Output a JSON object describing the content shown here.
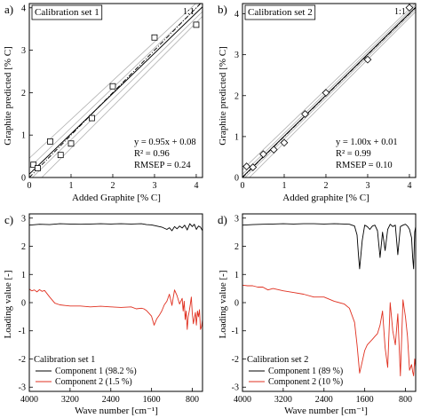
{
  "chart_data": [
    {
      "panel_label": "a)",
      "type": "scatter",
      "annotation": "Calibration set 1",
      "corner_label": "1:1",
      "xlabel": "Added Graphite [% C]",
      "ylabel": "Graphite predicted [% C]",
      "xlim": [
        0,
        4.15
      ],
      "ylim": [
        0,
        4.1
      ],
      "xticks": [
        0,
        1,
        2,
        3,
        4
      ],
      "yticks": [
        0,
        1,
        2,
        3,
        4
      ],
      "points": [
        [
          0.1,
          0.3
        ],
        [
          0.2,
          0.22
        ],
        [
          0.5,
          0.85
        ],
        [
          0.75,
          0.53
        ],
        [
          1.0,
          0.8
        ],
        [
          1.5,
          1.4
        ],
        [
          2.0,
          2.15
        ],
        [
          3.0,
          3.3
        ],
        [
          4.0,
          3.6
        ]
      ],
      "fit": {
        "slope": 0.95,
        "intercept": 0.08
      },
      "band_halfwidth": 0.25,
      "stats": [
        "y = 0.95x + 0.08",
        "R² = 0.96",
        "RMSEP = 0.24"
      ]
    },
    {
      "panel_label": "b)",
      "type": "scatter",
      "annotation": "Calibration set 2",
      "corner_label": "1:1",
      "xlabel": "Added graphite [% C]",
      "ylabel": "Graphite predicted [% C]",
      "xlim": [
        0,
        4.15
      ],
      "ylim": [
        0,
        4.25
      ],
      "xticks": [
        0,
        1,
        2,
        3,
        4
      ],
      "yticks": [
        0,
        1,
        2,
        3,
        4
      ],
      "points": [
        [
          0.1,
          0.27
        ],
        [
          0.25,
          0.25
        ],
        [
          0.5,
          0.57
        ],
        [
          0.75,
          0.68
        ],
        [
          1.0,
          0.85
        ],
        [
          1.5,
          1.55
        ],
        [
          2.0,
          2.07
        ],
        [
          3.0,
          2.88
        ],
        [
          4.0,
          4.15
        ]
      ],
      "fit": {
        "slope": 1.0,
        "intercept": 0.01
      },
      "band_halfwidth": 0.12,
      "stats": [
        "y = 1.00x + 0.01",
        "R² = 0.99",
        "RMSEP = 0.10"
      ]
    },
    {
      "panel_label": "c)",
      "type": "line",
      "annotation": "Calibration set 1",
      "xlabel": "Wave number [cm⁻¹]",
      "ylabel": "Loading value [-]",
      "xlim": [
        4000,
        600
      ],
      "ylim": [
        -3.15,
        3.15
      ],
      "xticks": [
        4000,
        3200,
        2400,
        1600,
        800
      ],
      "yticks": [
        3,
        2,
        1,
        0,
        -1,
        -2,
        -3
      ],
      "series": [
        {
          "name": "Component 1 (98.2 %)",
          "color": "#000000",
          "x": [
            4000,
            3800,
            3600,
            3400,
            3200,
            3000,
            2800,
            2600,
            2400,
            2200,
            2000,
            1800,
            1700,
            1600,
            1500,
            1400,
            1300,
            1250,
            1200,
            1150,
            1100,
            1050,
            1000,
            950,
            900,
            850,
            800,
            760,
            720,
            680,
            640,
            600
          ],
          "y": [
            2.75,
            2.78,
            2.77,
            2.8,
            2.79,
            2.78,
            2.79,
            2.8,
            2.79,
            2.8,
            2.79,
            2.8,
            2.77,
            2.76,
            2.72,
            2.68,
            2.6,
            2.66,
            2.55,
            2.7,
            2.62,
            2.72,
            2.65,
            2.75,
            2.58,
            2.8,
            2.7,
            2.78,
            2.6,
            2.72,
            2.68,
            2.55
          ]
        },
        {
          "name": "Component 2 (1.5 %)",
          "color": "#e03020",
          "x": [
            4000,
            3950,
            3900,
            3850,
            3800,
            3750,
            3700,
            3600,
            3500,
            3400,
            3300,
            3200,
            3000,
            2800,
            2600,
            2400,
            2200,
            2000,
            1900,
            1800,
            1750,
            1700,
            1650,
            1600,
            1550,
            1500,
            1450,
            1400,
            1350,
            1300,
            1250,
            1200,
            1150,
            1100,
            1050,
            1000,
            980,
            960,
            940,
            920,
            900,
            880,
            860,
            840,
            820,
            800,
            780,
            760,
            740,
            720,
            700,
            680,
            660,
            640,
            620,
            600
          ],
          "y": [
            0.48,
            0.42,
            0.45,
            0.38,
            0.46,
            0.4,
            0.43,
            0.2,
            -0.02,
            -0.08,
            -0.1,
            -0.12,
            -0.12,
            -0.15,
            -0.13,
            -0.15,
            -0.17,
            -0.15,
            -0.22,
            -0.2,
            -0.22,
            -0.28,
            -0.38,
            -0.48,
            -0.8,
            -0.58,
            -0.45,
            -0.3,
            -0.08,
            0.05,
            0.3,
            -0.1,
            0.45,
            0.25,
            -0.05,
            0.15,
            -0.3,
            0.05,
            -0.6,
            -0.3,
            -0.95,
            -0.5,
            -0.3,
            -0.08,
            0.2,
            -0.38,
            -0.75,
            -0.55,
            -0.35,
            -0.8,
            -0.3,
            -0.5,
            -0.25,
            -0.95,
            -0.85,
            -0.6
          ]
        }
      ]
    },
    {
      "panel_label": "d)",
      "type": "line",
      "annotation": "Calibration set 2",
      "xlabel": "Wave number [cm⁻¹]",
      "ylabel": "Loading value [-]",
      "xlim": [
        4000,
        600
      ],
      "ylim": [
        -3.15,
        3.15
      ],
      "xticks": [
        4000,
        3200,
        2400,
        1600,
        800
      ],
      "yticks": [
        3,
        2,
        1,
        0,
        -1,
        -2,
        -3
      ],
      "series": [
        {
          "name": "Component 1 (89 %)",
          "color": "#000000",
          "x": [
            4000,
            3800,
            3600,
            3400,
            3200,
            3000,
            2800,
            2600,
            2400,
            2200,
            2000,
            1900,
            1800,
            1750,
            1720,
            1700,
            1650,
            1600,
            1550,
            1500,
            1450,
            1400,
            1350,
            1300,
            1250,
            1200,
            1150,
            1100,
            1050,
            1000,
            950,
            900,
            850,
            800,
            760,
            720,
            680,
            660,
            640,
            620,
            600
          ],
          "y": [
            2.75,
            2.77,
            2.78,
            2.79,
            2.8,
            2.79,
            2.8,
            2.8,
            2.79,
            2.8,
            2.79,
            2.78,
            2.72,
            2.4,
            1.6,
            1.2,
            2.2,
            2.75,
            2.7,
            2.6,
            2.72,
            2.75,
            2.55,
            1.6,
            2.5,
            1.85,
            2.6,
            2.78,
            2.7,
            2.75,
            1.7,
            2.7,
            2.75,
            2.78,
            2.72,
            2.6,
            2.3,
            1.6,
            1.2,
            2.5,
            2.7
          ]
        },
        {
          "name": "Component 2 (10 %)",
          "color": "#e03020",
          "x": [
            4000,
            3900,
            3800,
            3700,
            3600,
            3500,
            3400,
            3200,
            3000,
            2800,
            2600,
            2400,
            2200,
            2000,
            1900,
            1800,
            1750,
            1700,
            1650,
            1600,
            1550,
            1500,
            1450,
            1400,
            1350,
            1300,
            1250,
            1200,
            1150,
            1100,
            1050,
            1000,
            950,
            900,
            850,
            800,
            760,
            720,
            680,
            660,
            640,
            620,
            600
          ],
          "y": [
            0.62,
            0.6,
            0.6,
            0.55,
            0.55,
            0.45,
            0.5,
            0.42,
            0.36,
            0.3,
            0.2,
            0.2,
            0.05,
            -0.05,
            -0.2,
            -0.7,
            -1.5,
            -2.5,
            -2.1,
            -1.7,
            -1.5,
            -1.4,
            -1.3,
            -1.2,
            -1.1,
            -0.8,
            -0.3,
            -1.6,
            -2.3,
            0.0,
            -1.0,
            -1.5,
            -0.4,
            -2.6,
            0.1,
            -0.5,
            -1.2,
            -2.4,
            -2.2,
            -2.45,
            -2.6,
            -2.0,
            -2.3
          ]
        }
      ]
    }
  ]
}
